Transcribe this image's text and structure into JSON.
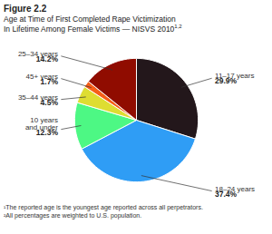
{
  "chart_data": {
    "type": "pie",
    "title": "Age at Time of First Completed Rape Victimization",
    "subtitle": "In Lifetime Among Female Victims — NISVS 2010",
    "categories": [
      "11–17 years",
      "18–24 years",
      "10 years\nand under",
      "35–44 years",
      "45+ years",
      "25–34 years"
    ],
    "values": [
      29.9,
      37.4,
      12.3,
      4.5,
      1.7,
      14.2
    ],
    "value_labels": [
      "29.9%",
      "37.4%",
      "12.3%",
      "4.5%",
      "1.7%",
      "14.2%"
    ],
    "data_labels": true,
    "annotations": [
      "Figure 2.2",
      "1,2",
      "¹The reported age is the youngest age reported across all perpetrators.",
      "²All percentages are weighted to U.S. population."
    ]
  }
}
